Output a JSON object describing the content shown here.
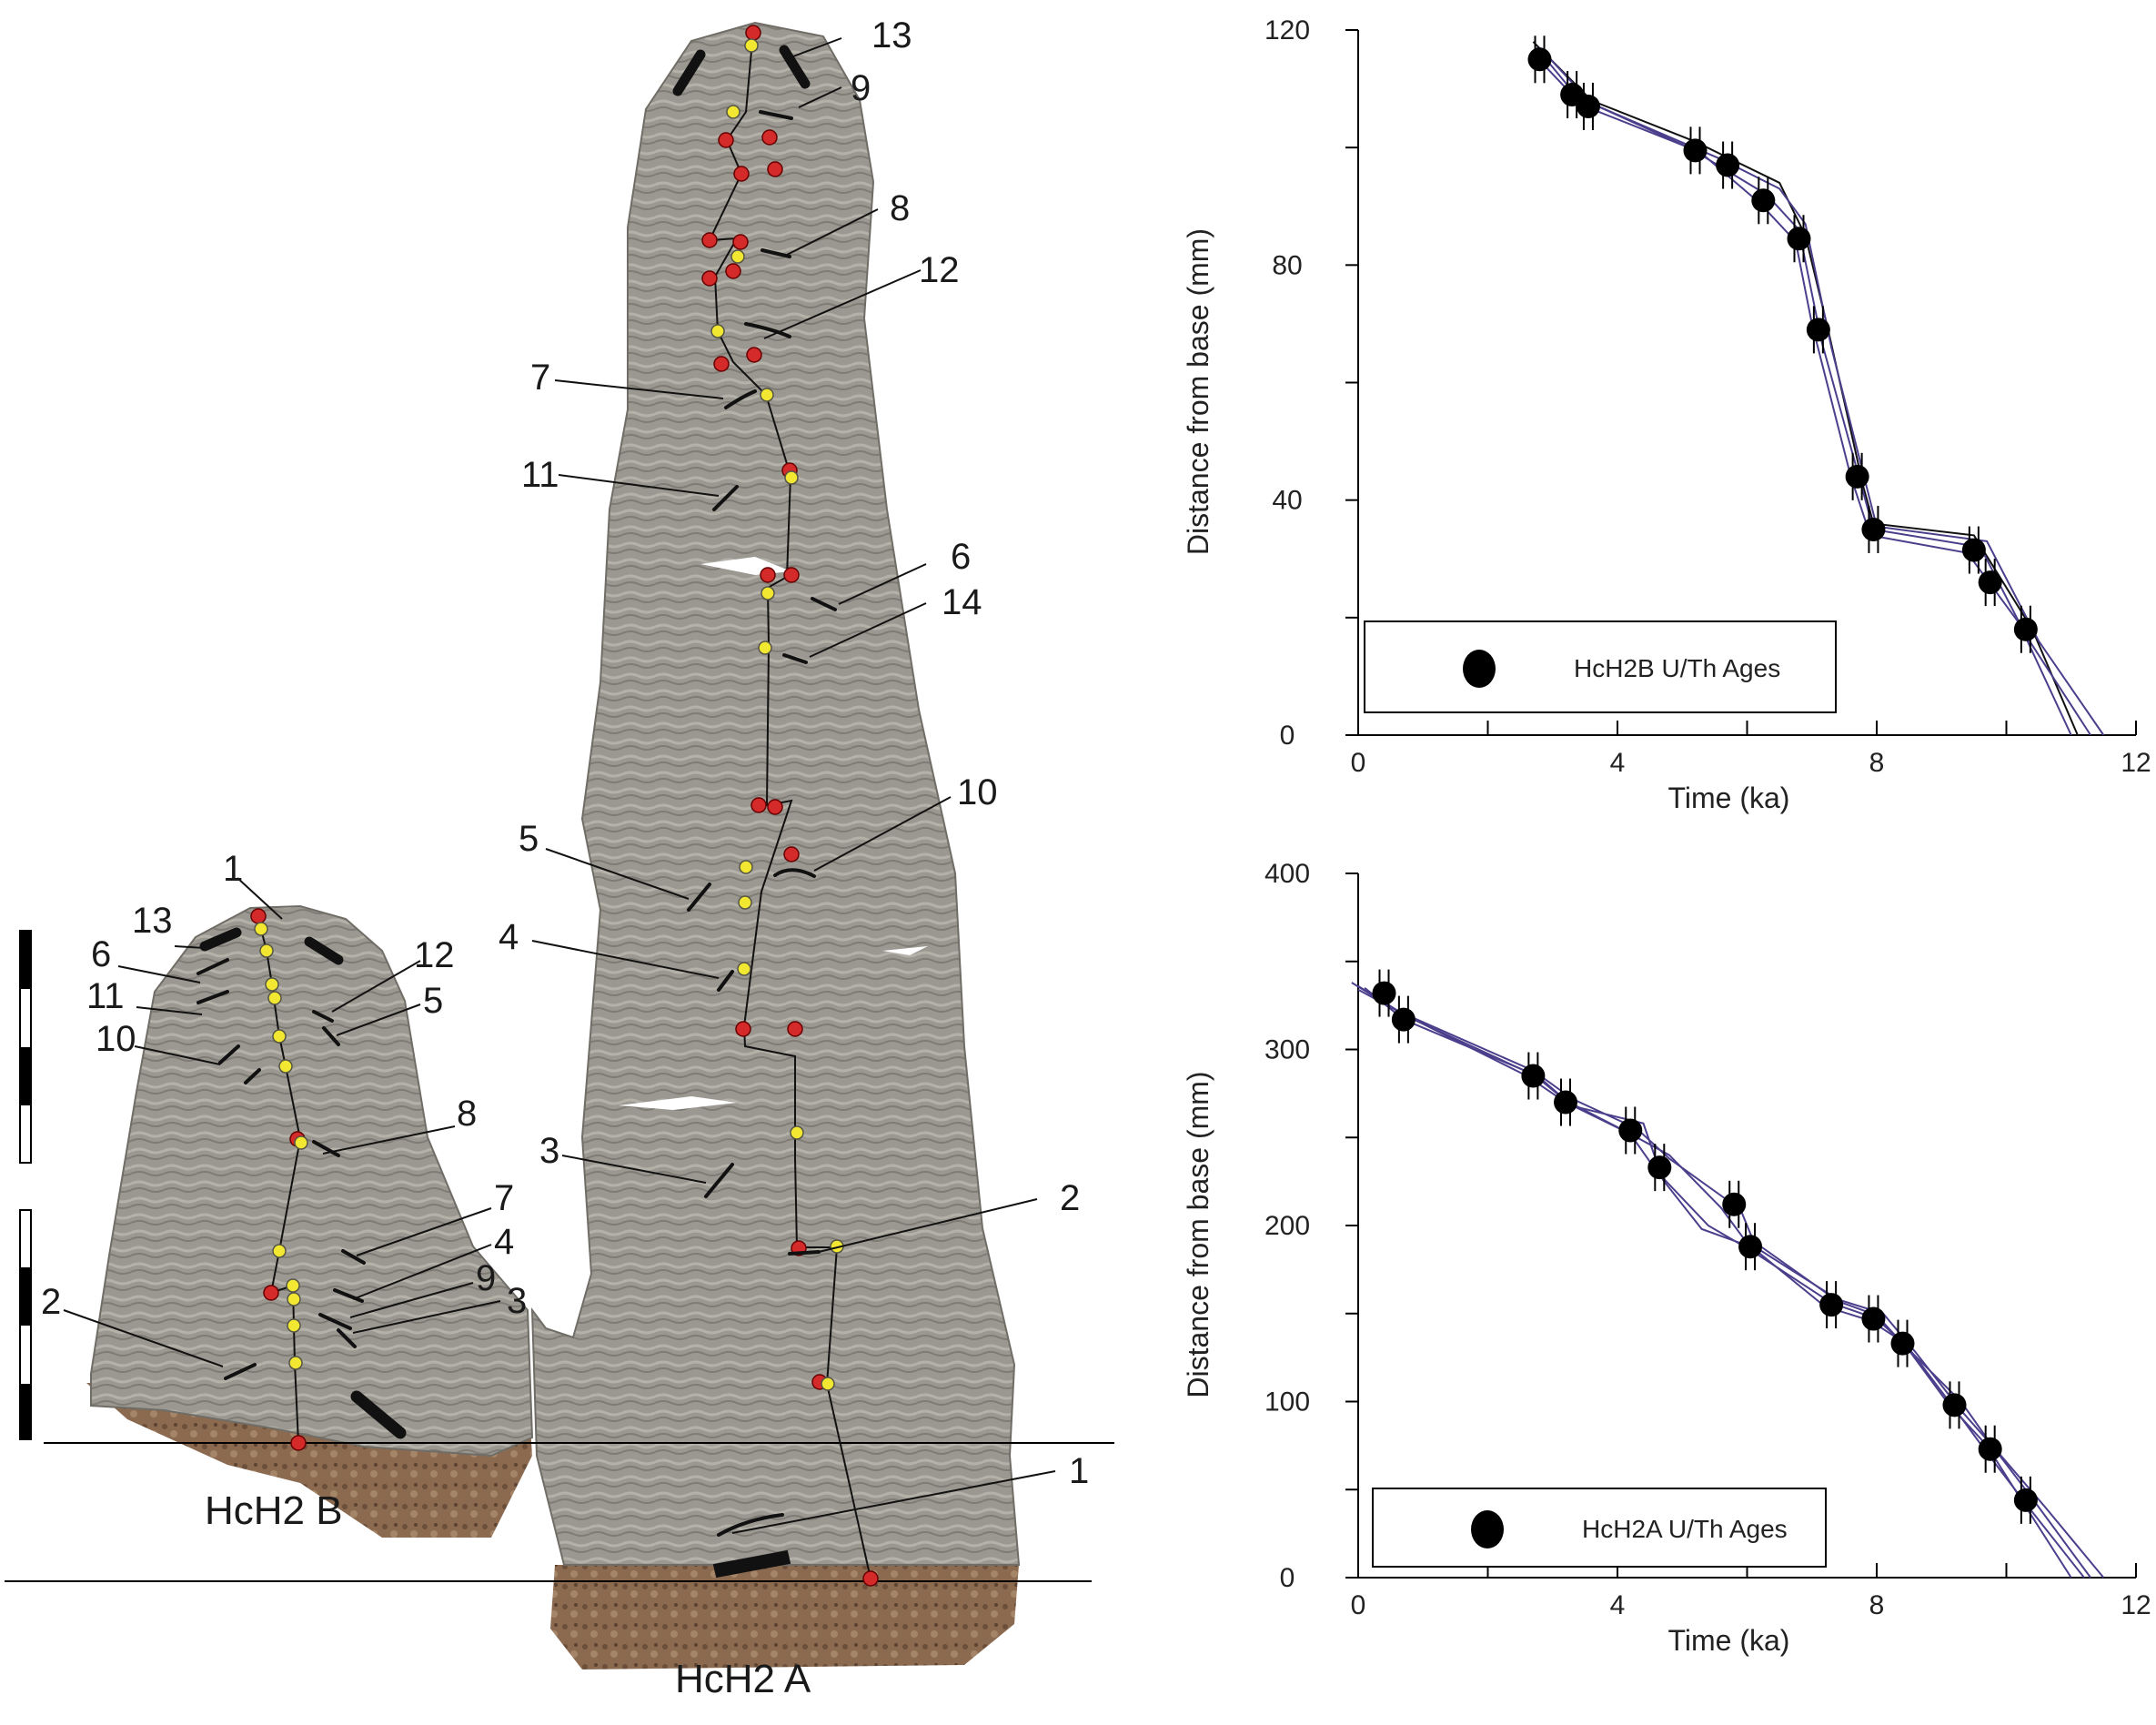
{
  "photo": {
    "specimen_b_label": "HcH2 B",
    "specimen_a_label": "HcH2 A",
    "specimen_b_layer_labels": [
      "1",
      "13",
      "6",
      "11",
      "10",
      "12",
      "5",
      "8",
      "7",
      "4",
      "9",
      "3",
      "2"
    ],
    "specimen_a_layer_labels": [
      "13",
      "9",
      "8",
      "12",
      "7",
      "11",
      "6",
      "14",
      "10",
      "5",
      "4",
      "3",
      "2",
      "1"
    ]
  },
  "colors": {
    "sample_red": "#d42a2a",
    "sample_yellow": "#f2e832",
    "age_marker": "#000000",
    "model_line": "#4b3f8c",
    "stone": "#9a9890",
    "base_rock": "#8b6a50"
  },
  "chart_data": [
    {
      "type": "scatter",
      "legend": "HcH2B U/Th Ages",
      "legend_position": "bottom-left",
      "xlabel": "Time (ka)",
      "ylabel": "Distance from base (mm)",
      "xlim": [
        0,
        12
      ],
      "ylim": [
        0,
        120
      ],
      "x_ticks": [
        "0",
        "4",
        "8",
        "12"
      ],
      "y_ticks": [
        "0",
        "40",
        "80",
        "120"
      ],
      "points": [
        {
          "x": 2.8,
          "y": 115
        },
        {
          "x": 3.3,
          "y": 109
        },
        {
          "x": 3.55,
          "y": 107
        },
        {
          "x": 5.2,
          "y": 99.5
        },
        {
          "x": 5.7,
          "y": 97
        },
        {
          "x": 6.25,
          "y": 91
        },
        {
          "x": 6.8,
          "y": 84.5
        },
        {
          "x": 7.1,
          "y": 69
        },
        {
          "x": 7.7,
          "y": 44
        },
        {
          "x": 7.95,
          "y": 35
        },
        {
          "x": 9.5,
          "y": 31.5
        },
        {
          "x": 9.75,
          "y": 26
        },
        {
          "x": 10.3,
          "y": 18
        }
      ],
      "model_lines": [
        [
          [
            2.7,
            118
          ],
          [
            3.6,
            108
          ],
          [
            5.2,
            101
          ],
          [
            6.5,
            94
          ],
          [
            6.9,
            85
          ],
          [
            7.25,
            69
          ],
          [
            7.8,
            42
          ],
          [
            7.95,
            36
          ],
          [
            9.5,
            34
          ],
          [
            10.4,
            18
          ],
          [
            11.1,
            0
          ]
        ],
        [
          [
            2.75,
            117
          ],
          [
            3.5,
            107
          ],
          [
            5.1,
            100
          ],
          [
            6.3,
            92
          ],
          [
            6.8,
            86
          ],
          [
            7.15,
            67
          ],
          [
            7.75,
            43
          ],
          [
            7.95,
            35
          ],
          [
            9.6,
            32
          ],
          [
            10.3,
            17
          ],
          [
            11.3,
            0
          ]
        ],
        [
          [
            2.7,
            116
          ],
          [
            3.3,
            109
          ],
          [
            5.3,
            99
          ],
          [
            6.2,
            90.5
          ],
          [
            6.75,
            84
          ],
          [
            7.0,
            70
          ],
          [
            7.6,
            44
          ],
          [
            7.9,
            34
          ],
          [
            9.4,
            31
          ],
          [
            10.2,
            19
          ],
          [
            11.0,
            0
          ]
        ],
        [
          [
            2.8,
            117
          ],
          [
            3.6,
            107.5
          ],
          [
            5.6,
            98
          ],
          [
            6.5,
            93
          ],
          [
            6.9,
            87
          ],
          [
            7.3,
            66
          ],
          [
            7.85,
            42
          ],
          [
            8.0,
            35.5
          ],
          [
            9.7,
            33
          ],
          [
            10.5,
            16
          ],
          [
            11.5,
            0
          ]
        ]
      ]
    },
    {
      "type": "scatter",
      "legend": "HcH2A U/Th Ages",
      "legend_position": "bottom-left",
      "xlabel": "Time (ka)",
      "ylabel": "Distance from base (mm)",
      "xlim": [
        0,
        12
      ],
      "ylim": [
        0,
        400
      ],
      "x_ticks": [
        "0",
        "4",
        "8",
        "12"
      ],
      "y_ticks": [
        "0",
        "100",
        "200",
        "300",
        "400"
      ],
      "points": [
        {
          "x": 0.4,
          "y": 332
        },
        {
          "x": 0.7,
          "y": 317
        },
        {
          "x": 2.7,
          "y": 285
        },
        {
          "x": 3.2,
          "y": 270
        },
        {
          "x": 4.2,
          "y": 254
        },
        {
          "x": 4.65,
          "y": 233
        },
        {
          "x": 5.8,
          "y": 212
        },
        {
          "x": 6.05,
          "y": 188
        },
        {
          "x": 7.3,
          "y": 155
        },
        {
          "x": 7.95,
          "y": 147
        },
        {
          "x": 8.4,
          "y": 133
        },
        {
          "x": 9.2,
          "y": 98
        },
        {
          "x": 9.75,
          "y": 73
        },
        {
          "x": 10.3,
          "y": 44
        }
      ],
      "model_lines": [
        [
          [
            -0.1,
            338
          ],
          [
            0.6,
            322
          ],
          [
            2.7,
            288
          ],
          [
            3.3,
            272
          ],
          [
            4.3,
            255
          ],
          [
            4.8,
            238
          ],
          [
            5.9,
            209
          ],
          [
            6.1,
            191
          ],
          [
            7.4,
            157
          ],
          [
            8.0,
            149
          ],
          [
            8.4,
            133
          ],
          [
            9.3,
            100
          ],
          [
            9.8,
            74
          ],
          [
            10.4,
            45
          ],
          [
            11.3,
            0
          ]
        ],
        [
          [
            0.0,
            336
          ],
          [
            0.7,
            320
          ],
          [
            2.6,
            285
          ],
          [
            3.2,
            270
          ],
          [
            4.2,
            252
          ],
          [
            4.6,
            231
          ],
          [
            5.4,
            200
          ],
          [
            6.1,
            185
          ],
          [
            7.3,
            156
          ],
          [
            8.0,
            147
          ],
          [
            8.5,
            130
          ],
          [
            9.2,
            96
          ],
          [
            9.7,
            71
          ],
          [
            10.3,
            42
          ],
          [
            11.2,
            0
          ]
        ],
        [
          [
            0.0,
            334
          ],
          [
            0.8,
            318
          ],
          [
            2.8,
            284
          ],
          [
            3.3,
            268
          ],
          [
            4.4,
            258
          ],
          [
            4.7,
            226
          ],
          [
            5.3,
            198
          ],
          [
            6.2,
            186
          ],
          [
            7.4,
            158
          ],
          [
            8.1,
            150
          ],
          [
            8.6,
            128
          ],
          [
            9.3,
            95
          ],
          [
            9.9,
            70
          ],
          [
            10.6,
            40
          ],
          [
            11.5,
            0
          ]
        ],
        [
          [
            0.1,
            335
          ],
          [
            0.7,
            317
          ],
          [
            2.7,
            286
          ],
          [
            3.2,
            271
          ],
          [
            4.1,
            254
          ],
          [
            4.8,
            240
          ],
          [
            5.6,
            210
          ],
          [
            6.0,
            190
          ],
          [
            7.2,
            154
          ],
          [
            7.9,
            146
          ],
          [
            8.4,
            134
          ],
          [
            9.1,
            99
          ],
          [
            9.7,
            75
          ],
          [
            10.2,
            46
          ],
          [
            11.0,
            0
          ]
        ]
      ]
    }
  ]
}
